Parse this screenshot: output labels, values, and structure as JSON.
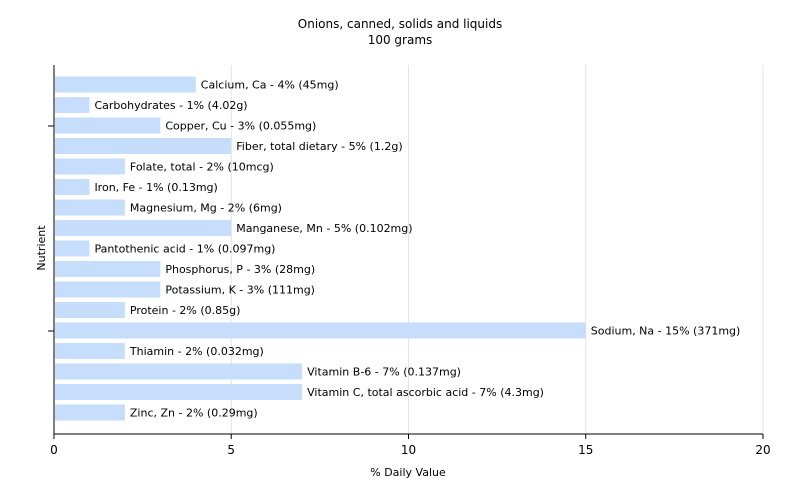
{
  "chart_data": {
    "type": "bar",
    "orientation": "horizontal",
    "title": "Onions, canned, solids and liquids",
    "subtitle": "100 grams",
    "xlabel": "% Daily Value",
    "ylabel": "Nutrient",
    "xlim": [
      0,
      20
    ],
    "xticks": [
      0,
      5,
      10,
      15,
      20
    ],
    "grid": true,
    "bar_color": "#c6defc",
    "categories": [
      "Calcium, Ca",
      "Carbohydrates",
      "Copper, Cu",
      "Fiber, total dietary",
      "Folate, total",
      "Iron, Fe",
      "Magnesium, Mg",
      "Manganese, Mn",
      "Pantothenic acid",
      "Phosphorus, P",
      "Potassium, K",
      "Protein",
      "Sodium, Na",
      "Thiamin",
      "Vitamin B-6",
      "Vitamin C, total ascorbic acid",
      "Zinc, Zn"
    ],
    "values": [
      4,
      1,
      3,
      5,
      2,
      1,
      2,
      5,
      1,
      3,
      3,
      2,
      15,
      2,
      7,
      7,
      2
    ],
    "labels": [
      "Calcium, Ca - 4% (45mg)",
      "Carbohydrates - 1% (4.02g)",
      "Copper, Cu - 3% (0.055mg)",
      "Fiber, total dietary - 5% (1.2g)",
      "Folate, total - 2% (10mcg)",
      "Iron, Fe - 1% (0.13mg)",
      "Magnesium, Mg - 2% (6mg)",
      "Manganese, Mn - 5% (0.102mg)",
      "Pantothenic acid - 1% (0.097mg)",
      "Phosphorus, P - 3% (28mg)",
      "Potassium, K - 3% (111mg)",
      "Protein - 2% (0.85g)",
      "Sodium, Na - 15% (371mg)",
      "Thiamin - 2% (0.032mg)",
      "Vitamin B-6 - 7% (0.137mg)",
      "Vitamin C, total ascorbic acid - 7% (4.3mg)",
      "Zinc, Zn - 2% (0.29mg)"
    ]
  }
}
